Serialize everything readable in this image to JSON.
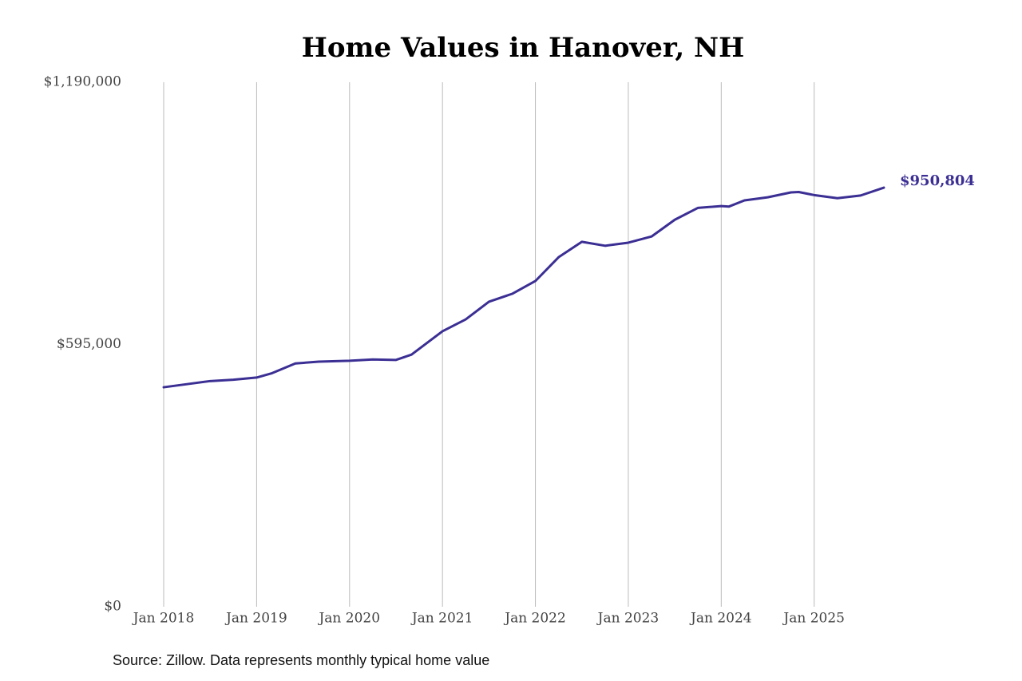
{
  "chart_data": {
    "type": "line",
    "title": "Home Values in Hanover, NH",
    "source": "Source: Zillow. Data represents monthly typical home value",
    "x": [
      "2018-01",
      "2018-04",
      "2018-07",
      "2018-10",
      "2019-01",
      "2019-03",
      "2019-06",
      "2019-09",
      "2020-01",
      "2020-04",
      "2020-07",
      "2020-09",
      "2021-01",
      "2021-04",
      "2021-07",
      "2021-10",
      "2022-01",
      "2022-04",
      "2022-07",
      "2022-10",
      "2023-01",
      "2023-04",
      "2023-07",
      "2023-10",
      "2024-01",
      "2024-02",
      "2024-04",
      "2024-07",
      "2024-10",
      "2024-11",
      "2025-01",
      "2025-04",
      "2025-07",
      "2025-10"
    ],
    "series": [
      {
        "name": "Home value",
        "color": "#3b2f94",
        "values": [
          498000,
          505000,
          512000,
          515000,
          520000,
          530000,
          552000,
          556000,
          558000,
          561000,
          560000,
          572000,
          625000,
          652000,
          692000,
          710000,
          739000,
          793000,
          828000,
          819000,
          826000,
          840000,
          878000,
          905000,
          909000,
          908000,
          922000,
          929000,
          940000,
          941000,
          934000,
          927000,
          933000,
          950804
        ],
        "value_labels": [
          null,
          null,
          null,
          null,
          null,
          null,
          null,
          null,
          null,
          null,
          null,
          null,
          null,
          null,
          null,
          null,
          null,
          null,
          null,
          null,
          null,
          null,
          null,
          null,
          null,
          null,
          null,
          null,
          null,
          null,
          null,
          null,
          null,
          "$950,804"
        ]
      }
    ],
    "xlim": [
      "2018-01",
      "2025-10"
    ],
    "xticks": [
      {
        "value": "2018-01",
        "label": "Jan 2018"
      },
      {
        "value": "2019-01",
        "label": "Jan 2019"
      },
      {
        "value": "2020-01",
        "label": "Jan 2020"
      },
      {
        "value": "2021-01",
        "label": "Jan 2021"
      },
      {
        "value": "2022-01",
        "label": "Jan 2022"
      },
      {
        "value": "2023-01",
        "label": "Jan 2023"
      },
      {
        "value": "2024-01",
        "label": "Jan 2024"
      },
      {
        "value": "2025-01",
        "label": "Jan 2025"
      }
    ],
    "ylim": [
      0,
      1190000
    ],
    "yticks": [
      {
        "value": 0,
        "label": "$0"
      },
      {
        "value": 595000,
        "label": "$595,000"
      },
      {
        "value": 1190000,
        "label": "$1,190,000"
      }
    ],
    "grid": "x"
  }
}
